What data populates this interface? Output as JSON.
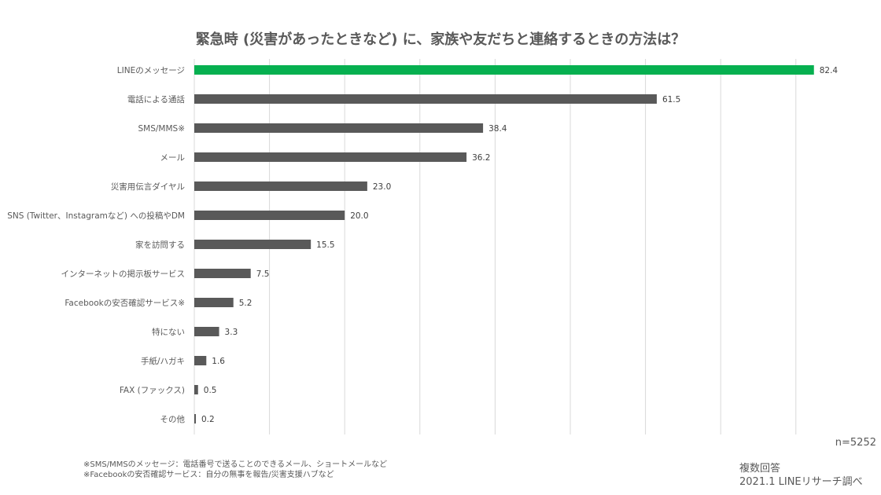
{
  "chart_data": {
    "type": "bar",
    "orientation": "horizontal",
    "title": "緊急時 (災害があったときなど) に、家族や友だちと連絡するときの方法は？",
    "categories": [
      "LINEのメッセージ",
      "電話による通話",
      "SMS/MMS※",
      "メール",
      "災害用伝言ダイヤル",
      "SNS (Twitter、Instagramなど) への投稿やDM",
      "家を訪問する",
      "インターネットの掲示板サービス",
      "Facebookの安否確認サービス※",
      "特にない",
      "手紙/ハガキ",
      "FAX (ファックス)",
      "その他"
    ],
    "values": [
      82.4,
      61.5,
      38.4,
      36.2,
      23.0,
      20.0,
      15.5,
      7.5,
      5.2,
      3.3,
      1.6,
      0.5,
      0.2
    ],
    "value_labels": [
      "82.4",
      "61.5",
      "38.4",
      "36.2",
      "23.0",
      "20.0",
      "15.5",
      "7.5",
      "5.2",
      "3.3",
      "1.6",
      "0.5",
      "0.2"
    ],
    "xlim": [
      0,
      90
    ],
    "grid": true,
    "grid_step": 10,
    "colors": {
      "highlight": "#06B050",
      "default": "#595959",
      "grid": "#D9D9D9"
    },
    "highlight_index": 0
  },
  "sample_size": "n=5252",
  "footnotes": [
    "※SMS/MMSのメッセージ：電話番号で送ることのできるメール、ショートメールなど",
    "※Facebookの安否確認サービス：自分の無事を報告/災害支援ハブなど"
  ],
  "source": {
    "answer_type": "複数回答",
    "credit": "2021.1  LINEリサーチ調べ"
  }
}
